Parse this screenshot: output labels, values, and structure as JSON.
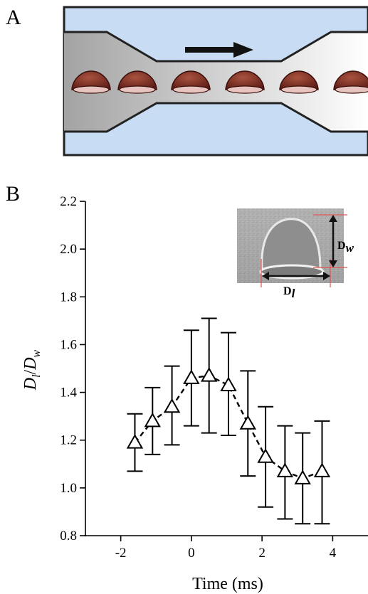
{
  "panels": {
    "a": "A",
    "b": "B"
  },
  "colors": {
    "channel_wall": "#c8dcf3",
    "channel_fluid_dark": "#a3a3a3",
    "channel_fluid_light": "#ffffff",
    "cell_fill": "#7a2c22",
    "cell_highlight": "#e8c4c0",
    "marker": "#000000",
    "inset_guide": "#e05555"
  },
  "inset": {
    "label_w_main": "D",
    "label_w_sub": "w",
    "label_l_main": "D",
    "label_l_sub": "l"
  },
  "chart_data": {
    "type": "scatter",
    "marker": "open-triangle",
    "line": "dashed",
    "x": [
      -1.6,
      -1.1,
      -0.55,
      0.0,
      0.5,
      1.05,
      1.6,
      2.1,
      2.65,
      3.15,
      3.7
    ],
    "y": [
      1.19,
      1.28,
      1.34,
      1.46,
      1.47,
      1.43,
      1.27,
      1.13,
      1.07,
      1.04,
      1.07
    ],
    "y_upper": [
      1.31,
      1.42,
      1.51,
      1.66,
      1.71,
      1.65,
      1.49,
      1.34,
      1.26,
      1.23,
      1.28
    ],
    "y_lower": [
      1.07,
      1.14,
      1.18,
      1.26,
      1.23,
      1.22,
      1.05,
      0.92,
      0.87,
      0.85,
      0.85
    ],
    "xlim": [
      -3,
      5
    ],
    "ylim": [
      0.8,
      2.2
    ],
    "x_ticks": [
      -2,
      0,
      2,
      4
    ],
    "x_tick_labels": [
      "-2",
      "0",
      "2",
      "4"
    ],
    "y_ticks": [
      0.8,
      1.0,
      1.2,
      1.4,
      1.6,
      1.8,
      2.0,
      2.2
    ],
    "y_tick_labels": [
      "0.8",
      "1.0",
      "1.2",
      "1.4",
      "1.6",
      "1.8",
      "2.0",
      "2.2"
    ],
    "xlabel": "Time (ms)",
    "ylabel_num_main": "D",
    "ylabel_num_sub": "l",
    "ylabel_sep": "/",
    "ylabel_den_main": "D",
    "ylabel_den_sub": "w",
    "grid": false
  }
}
